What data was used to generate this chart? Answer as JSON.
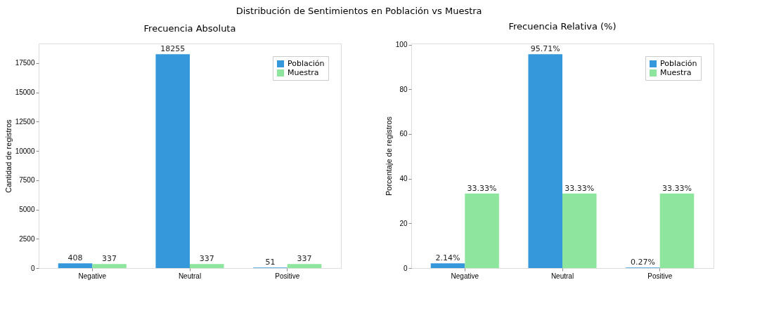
{
  "chart_data": [
    {
      "type": "bar",
      "title": "Distribución de Sentimientos en Población vs Muestra",
      "subtitle": "Frecuencia Absoluta",
      "ylabel": "Cantidad de registros",
      "categories": [
        "Negative",
        "Neutral",
        "Positive"
      ],
      "series": [
        {
          "name": "Población",
          "color": "#3498db",
          "values": [
            408,
            18255,
            51
          ]
        },
        {
          "name": "Muestra",
          "color": "#8ee59e",
          "values": [
            337,
            337,
            337
          ]
        }
      ],
      "ylim": [
        0,
        19170
      ],
      "yticks": [
        0,
        2500,
        5000,
        7500,
        10000,
        12500,
        15000,
        17500
      ],
      "data_labels": true,
      "legend": "top right",
      "grid": false
    },
    {
      "type": "bar",
      "title": "Frecuencia Relativa (%)",
      "ylabel": "Porcentaje de registros",
      "categories": [
        "Negative",
        "Neutral",
        "Positive"
      ],
      "series": [
        {
          "name": "Población",
          "color": "#3498db",
          "values": [
            2.14,
            95.71,
            0.27
          ],
          "value_labels": [
            "2.14%",
            "95.71%",
            "0.27%"
          ]
        },
        {
          "name": "Muestra",
          "color": "#8ee59e",
          "values": [
            33.33,
            33.33,
            33.33
          ],
          "value_labels": [
            "33.33%",
            "33.33%",
            "33.33%"
          ]
        }
      ],
      "ylim": [
        0,
        100.5
      ],
      "yticks": [
        0,
        20,
        40,
        60,
        80,
        100
      ],
      "legend": "top right",
      "grid": false
    }
  ]
}
